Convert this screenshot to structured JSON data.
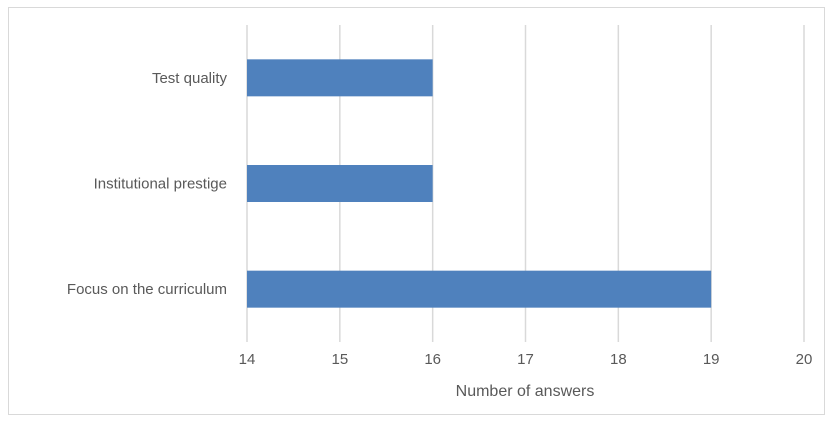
{
  "chart_data": {
    "type": "bar",
    "orientation": "horizontal",
    "categories": [
      "Test quality",
      "Institutional prestige",
      "Focus on the curriculum"
    ],
    "values": [
      16,
      16,
      19
    ],
    "title": "",
    "xlabel": "Number of answers",
    "ylabel": "",
    "xlim": [
      14,
      20
    ],
    "xticks": [
      "14",
      "15",
      "16",
      "17",
      "18",
      "19",
      "20"
    ],
    "grid": "vertical",
    "legend": "none",
    "bar_color": "#4F81BD",
    "grid_color": "#d9d9d9"
  }
}
